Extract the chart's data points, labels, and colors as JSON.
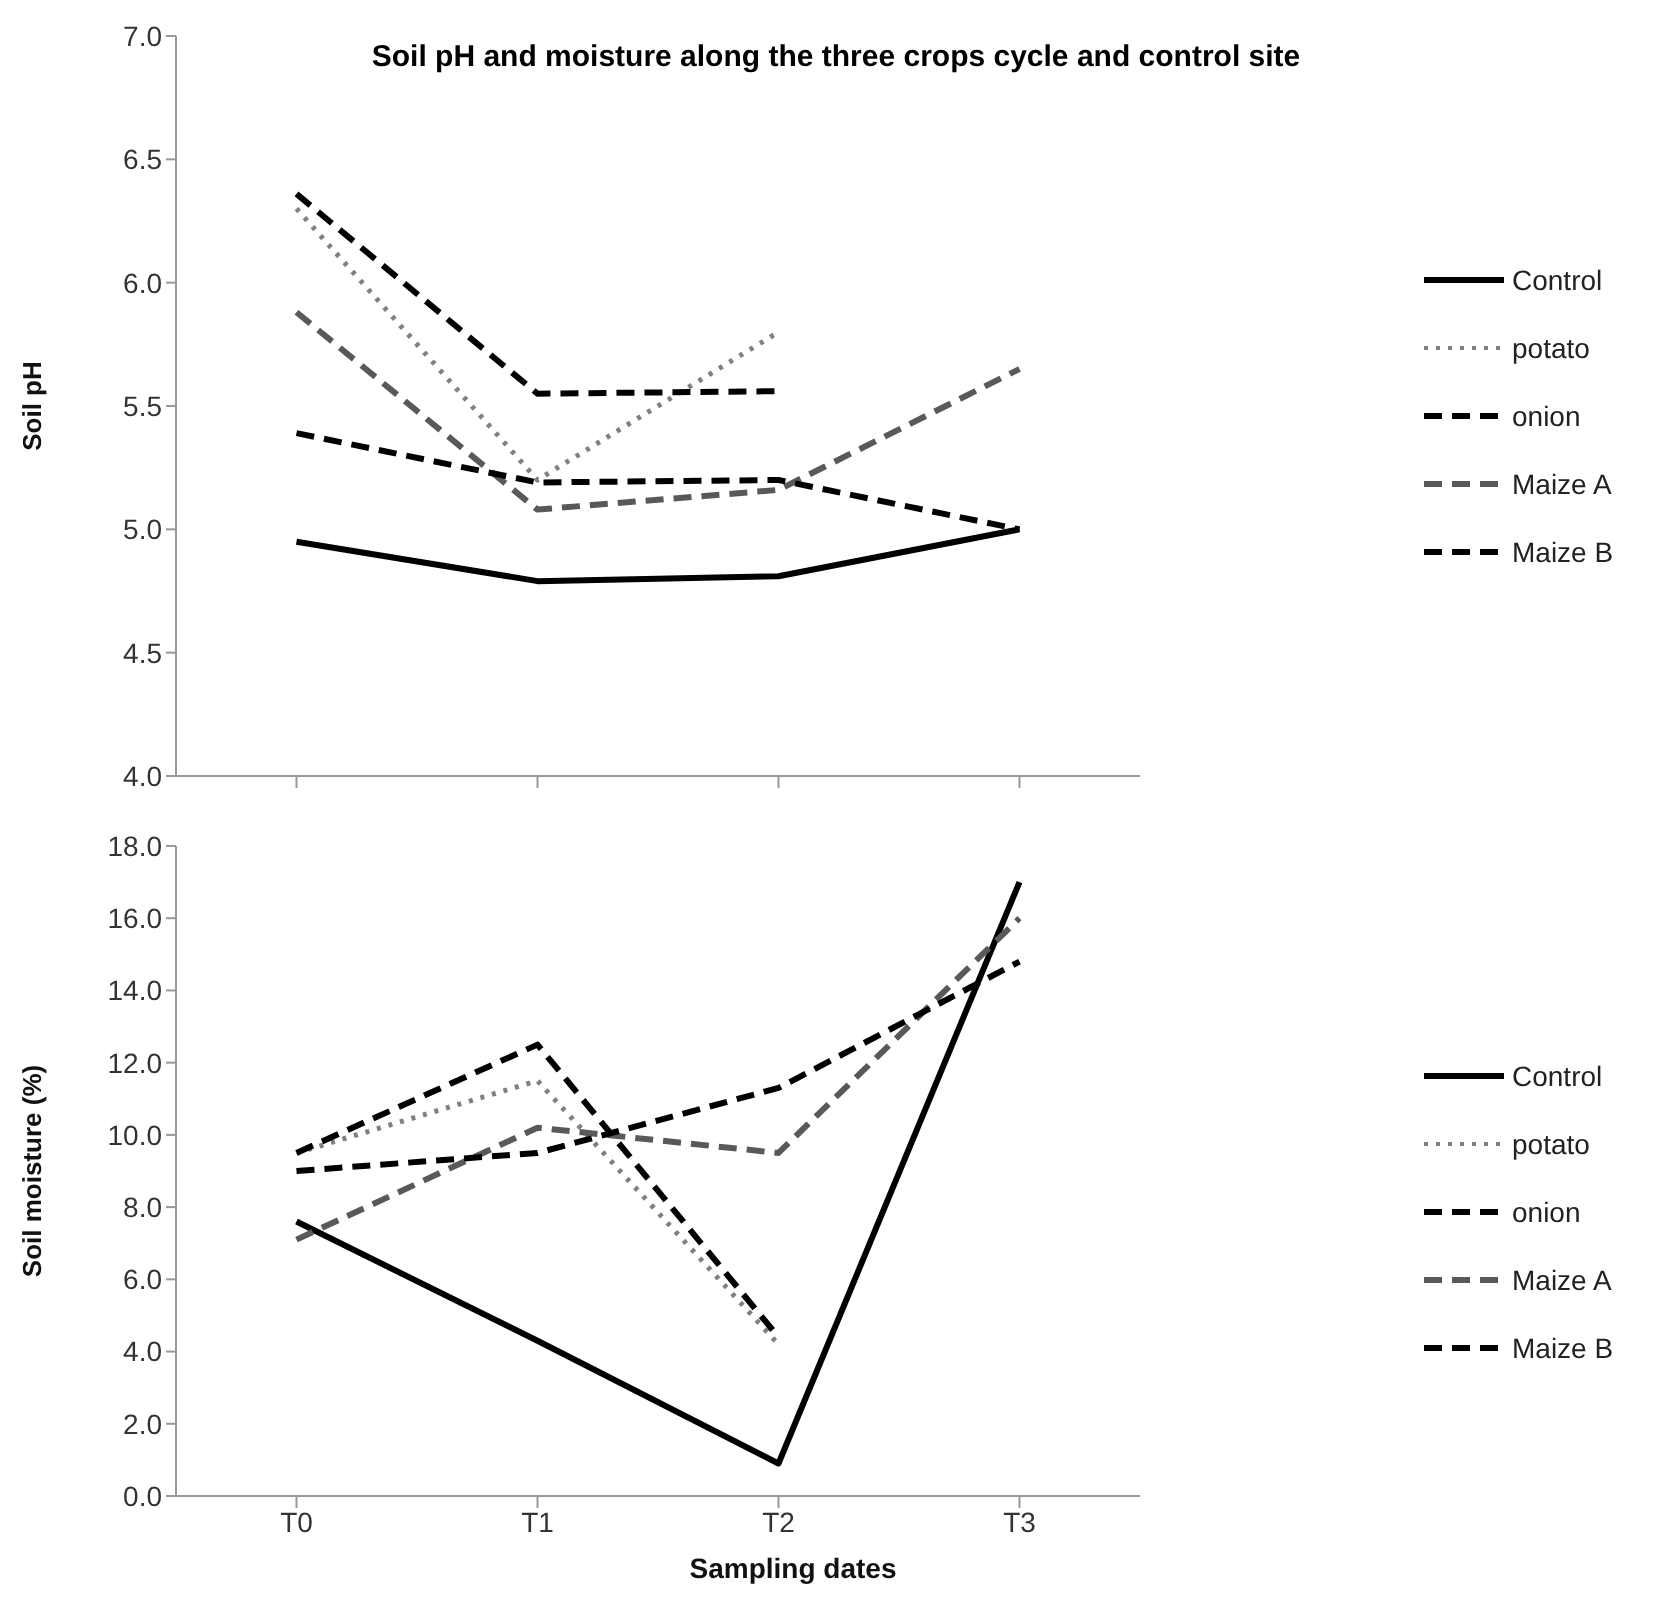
{
  "chart_data": [
    {
      "type": "line",
      "title": "Soil pH and moisture along the three crops cycle and control site",
      "ylabel": "Soil pH",
      "categories": [
        null,
        null,
        null,
        null
      ],
      "ylim": [
        4.0,
        7.0
      ],
      "yticks": [
        {
          "value": 4,
          "label": "4.0"
        },
        {
          "value": 4.5,
          "label": "4.5"
        },
        {
          "value": 5,
          "label": "5.0"
        },
        {
          "value": 5.5,
          "label": "5.5"
        },
        {
          "value": 6,
          "label": "6.0"
        },
        {
          "value": 6.5,
          "label": "6.5"
        },
        {
          "value": 7,
          "label": "7.0"
        }
      ],
      "tick_labels": "y",
      "grid": false,
      "legend": "right",
      "marker": "none",
      "series": [
        {
          "name": "Control",
          "color": "#000000",
          "line_style": "solid",
          "values": [
            4.95,
            4.79,
            4.81,
            5.0
          ]
        },
        {
          "name": "potato",
          "color": "#808080",
          "line_style": "dotted",
          "values": [
            6.3,
            5.2,
            5.8,
            null
          ]
        },
        {
          "name": "onion",
          "color": "#000000",
          "line_style": "dashed",
          "values": [
            6.36,
            5.55,
            5.56,
            null
          ]
        },
        {
          "name": "Maize A",
          "color": "#595959",
          "line_style": "dashed",
          "values": [
            5.88,
            5.08,
            5.16,
            5.65
          ]
        },
        {
          "name": "Maize B",
          "color": "#000000",
          "line_style": "dashed",
          "values": [
            5.39,
            5.19,
            5.2,
            5.0
          ]
        }
      ]
    },
    {
      "type": "line",
      "xlabel": "Sampling dates",
      "ylabel": "Soil moisture  (%)",
      "categories": [
        "T0",
        "T1",
        "T2",
        "T3"
      ],
      "ylim": [
        0,
        18
      ],
      "yticks": [
        {
          "value": 0,
          "label": "0.0"
        },
        {
          "value": 2,
          "label": "2.0"
        },
        {
          "value": 4,
          "label": "4.0"
        },
        {
          "value": 6,
          "label": "6.0"
        },
        {
          "value": 8,
          "label": "8.0"
        },
        {
          "value": 10,
          "label": "10.0"
        },
        {
          "value": 12,
          "label": "12.0"
        },
        {
          "value": 14,
          "label": "14.0"
        },
        {
          "value": 16,
          "label": "16.0"
        },
        {
          "value": 18,
          "label": "18.0"
        }
      ],
      "grid": false,
      "legend": "right",
      "marker": "none",
      "series": [
        {
          "name": "Control",
          "color": "#000000",
          "line_style": "solid",
          "values": [
            7.6,
            4.3,
            0.9,
            17.0
          ]
        },
        {
          "name": "potato",
          "color": "#808080",
          "line_style": "dotted",
          "values": [
            9.5,
            11.5,
            4.2,
            null
          ]
        },
        {
          "name": "onion",
          "color": "#000000",
          "line_style": "dashed",
          "values": [
            9.5,
            12.5,
            4.4,
            null
          ]
        },
        {
          "name": "Maize A",
          "color": "#595959",
          "line_style": "dashed",
          "values": [
            7.1,
            10.2,
            9.5,
            16.0
          ]
        },
        {
          "name": "Maize B",
          "color": "#000000",
          "line_style": "dashed",
          "values": [
            9.0,
            9.5,
            11.3,
            14.8
          ]
        }
      ]
    }
  ]
}
